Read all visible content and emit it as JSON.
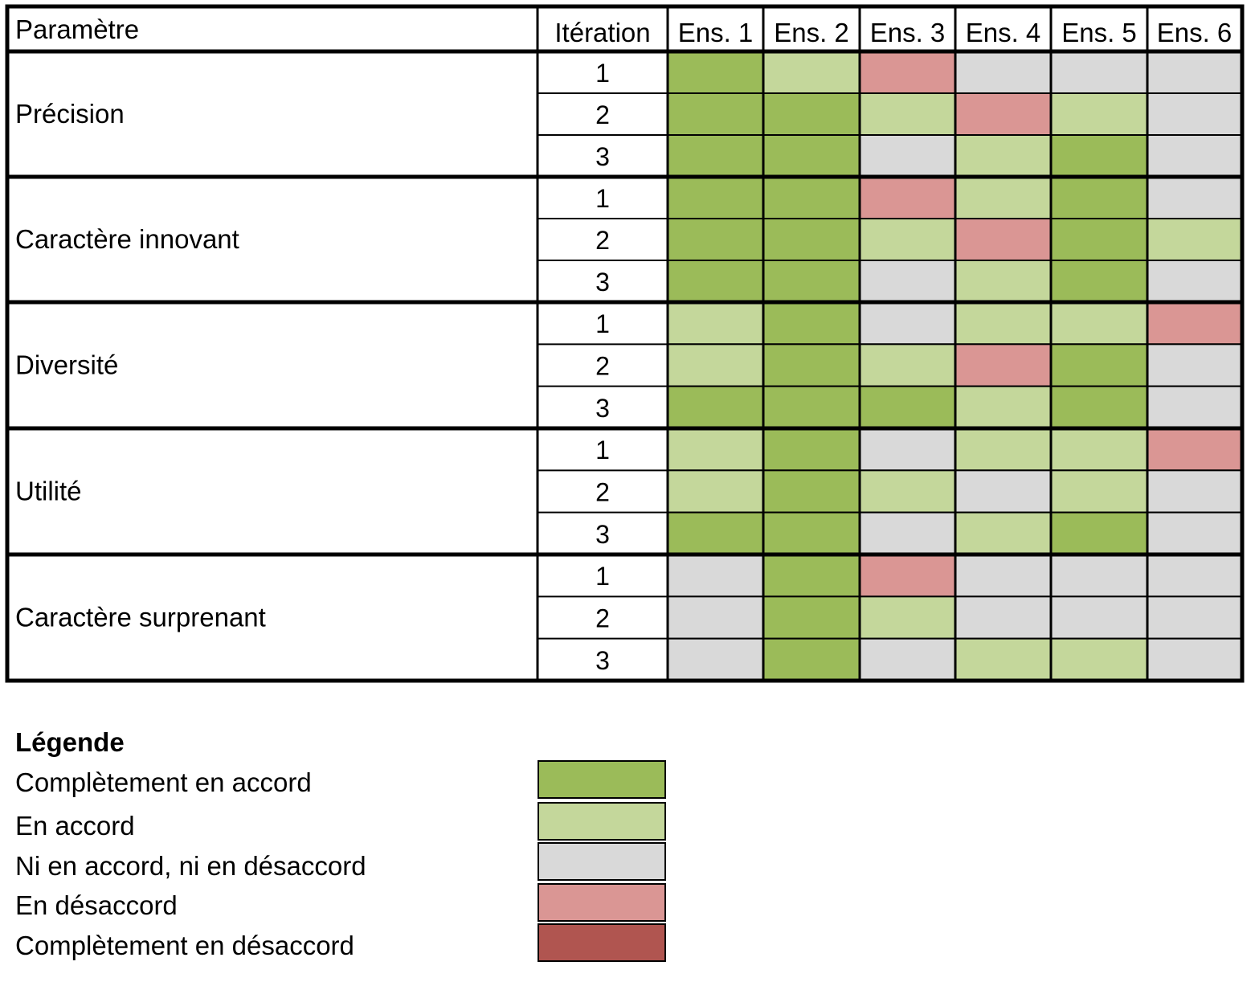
{
  "chart_data": {
    "type": "heatmap",
    "header": {
      "parameter": "Paramètre",
      "iteration": "Itération",
      "columns": [
        "Ens. 1",
        "Ens. 2",
        "Ens. 3",
        "Ens. 4",
        "Ens. 5",
        "Ens. 6"
      ]
    },
    "iterations": [
      "1",
      "2",
      "3"
    ],
    "levels": {
      "CA": "Complètement en accord",
      "A": "En accord",
      "N": "Ni en accord, ni en désaccord",
      "D": "En désaccord",
      "CD": "Complètement en désaccord"
    },
    "groups": [
      {
        "parameter": "Précision",
        "rows": [
          [
            "CA",
            "A",
            "D",
            "N",
            "N",
            "N"
          ],
          [
            "CA",
            "CA",
            "A",
            "D",
            "A",
            "N"
          ],
          [
            "CA",
            "CA",
            "N",
            "A",
            "CA",
            "N"
          ]
        ]
      },
      {
        "parameter": "Caractère innovant",
        "rows": [
          [
            "CA",
            "CA",
            "D",
            "A",
            "CA",
            "N"
          ],
          [
            "CA",
            "CA",
            "A",
            "D",
            "CA",
            "A"
          ],
          [
            "CA",
            "CA",
            "N",
            "A",
            "CA",
            "N"
          ]
        ]
      },
      {
        "parameter": "Diversité",
        "rows": [
          [
            "A",
            "CA",
            "N",
            "A",
            "A",
            "D"
          ],
          [
            "A",
            "CA",
            "A",
            "D",
            "CA",
            "N"
          ],
          [
            "CA",
            "CA",
            "CA",
            "A",
            "CA",
            "N"
          ]
        ]
      },
      {
        "parameter": "Utilité",
        "rows": [
          [
            "A",
            "CA",
            "N",
            "A",
            "A",
            "D"
          ],
          [
            "A",
            "CA",
            "A",
            "N",
            "A",
            "N"
          ],
          [
            "CA",
            "CA",
            "N",
            "A",
            "CA",
            "N"
          ]
        ]
      },
      {
        "parameter": "Caractère surprenant",
        "rows": [
          [
            "N",
            "CA",
            "D",
            "N",
            "N",
            "N"
          ],
          [
            "N",
            "CA",
            "A",
            "N",
            "N",
            "N"
          ],
          [
            "N",
            "CA",
            "N",
            "A",
            "A",
            "N"
          ]
        ]
      }
    ]
  },
  "colors": {
    "CA": "#9bbb59",
    "A": "#c4d79b",
    "N": "#d9d9d9",
    "D": "#da9694",
    "CD": "#b05550"
  },
  "legend": {
    "title": "Légende",
    "items": [
      {
        "key": "CA",
        "label": "Complètement en accord"
      },
      {
        "key": "A",
        "label": "En accord"
      },
      {
        "key": "N",
        "label": "Ni en accord, ni en désaccord"
      },
      {
        "key": "D",
        "label": "En désaccord"
      },
      {
        "key": "CD",
        "label": "Complètement en désaccord"
      }
    ]
  }
}
